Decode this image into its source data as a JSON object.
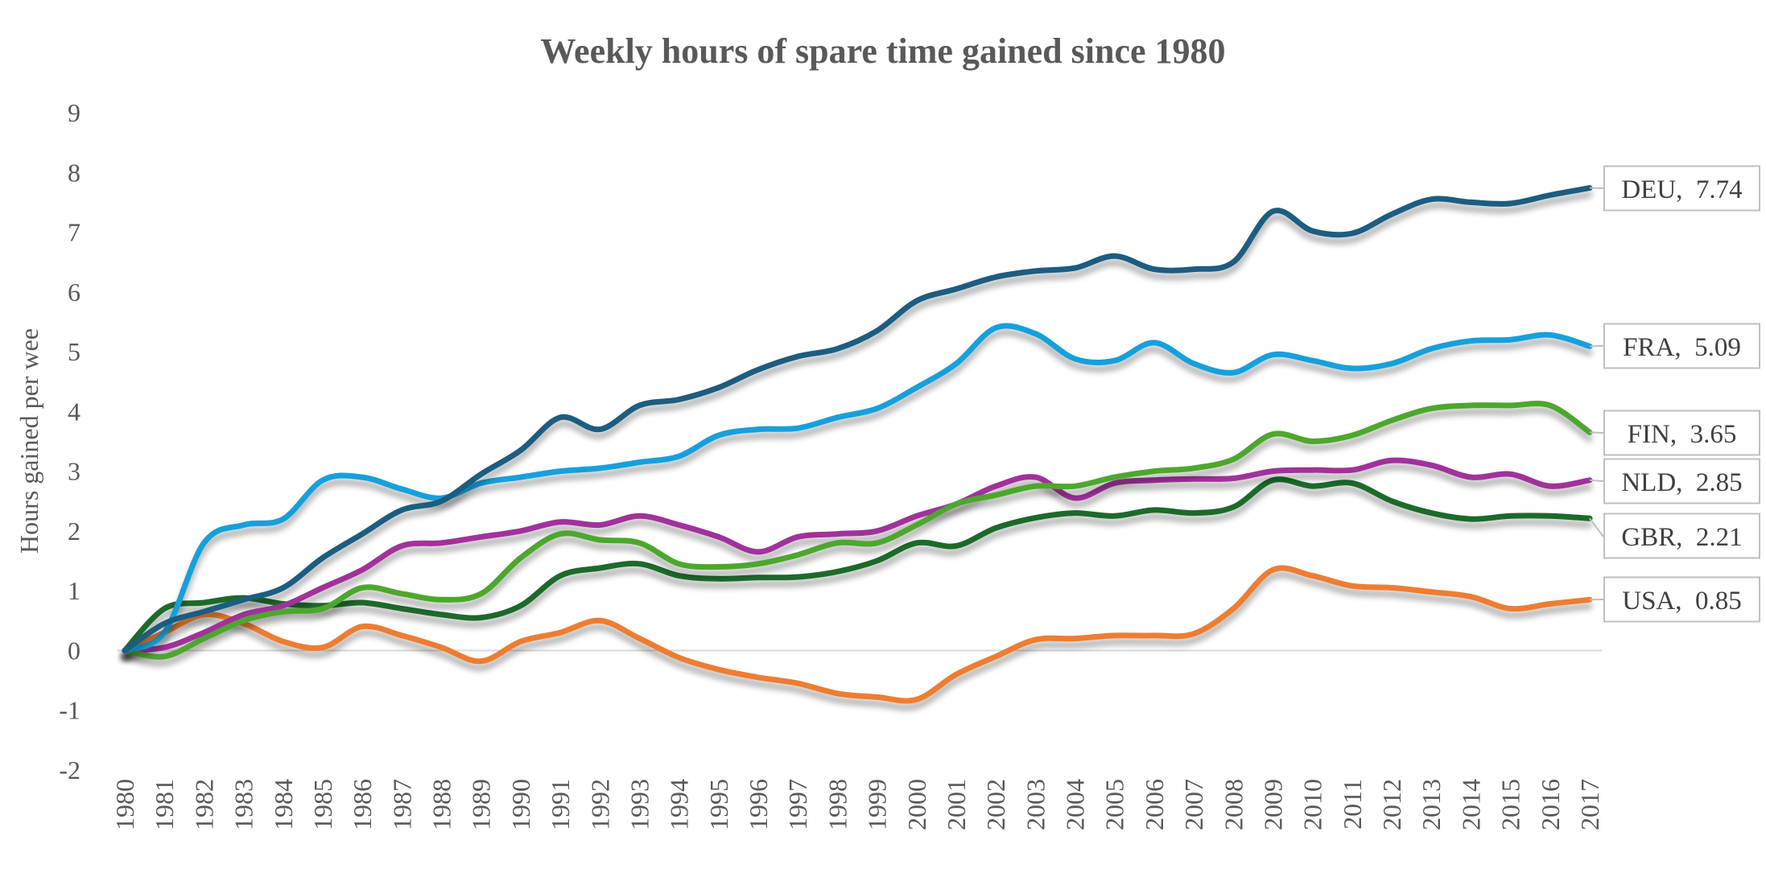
{
  "chart_data": {
    "type": "line",
    "title": "Weekly hours of spare time gained since 1980",
    "xlabel": "",
    "ylabel": "Hours gained per wee",
    "ylim": [
      -2,
      9
    ],
    "y_ticks": [
      "9",
      "8",
      "7",
      "6",
      "5",
      "4",
      "3",
      "2",
      "1",
      "0",
      "-1",
      "-2"
    ],
    "grid": false,
    "x": [
      "1980",
      "1981",
      "1982",
      "1983",
      "1984",
      "1985",
      "1986",
      "1987",
      "1988",
      "1989",
      "1990",
      "1991",
      "1992",
      "1993",
      "1994",
      "1995",
      "1996",
      "1997",
      "1998",
      "1999",
      "2000",
      "2001",
      "2002",
      "2003",
      "2004",
      "2005",
      "2006",
      "2007",
      "2008",
      "2009",
      "2010",
      "2011",
      "2012",
      "2013",
      "2014",
      "2015",
      "2016",
      "2017"
    ],
    "series": [
      {
        "name": "DEU",
        "color": "#1a5d80",
        "callout": "DEU,  7.74",
        "values": [
          0,
          0.45,
          0.65,
          0.85,
          1.05,
          1.55,
          1.95,
          2.35,
          2.5,
          2.95,
          3.35,
          3.9,
          3.7,
          4.1,
          4.2,
          4.4,
          4.7,
          4.92,
          5.05,
          5.35,
          5.85,
          6.05,
          6.25,
          6.35,
          6.4,
          6.6,
          6.38,
          6.38,
          6.5,
          7.35,
          7.02,
          6.98,
          7.3,
          7.55,
          7.5,
          7.48,
          7.62,
          7.74
        ]
      },
      {
        "name": "FRA",
        "color": "#15a0db",
        "callout": "FRA,  5.09",
        "values": [
          0,
          0.3,
          1.8,
          2.1,
          2.2,
          2.85,
          2.9,
          2.7,
          2.55,
          2.8,
          2.9,
          3.0,
          3.05,
          3.15,
          3.25,
          3.6,
          3.7,
          3.72,
          3.9,
          4.05,
          4.4,
          4.8,
          5.4,
          5.3,
          4.88,
          4.85,
          5.15,
          4.8,
          4.65,
          4.95,
          4.85,
          4.72,
          4.8,
          5.05,
          5.18,
          5.2,
          5.28,
          5.09
        ]
      },
      {
        "name": "FIN",
        "color": "#4ea72e",
        "callout": "FIN,  3.65",
        "values": [
          0,
          -0.1,
          0.2,
          0.5,
          0.65,
          0.7,
          1.05,
          0.95,
          0.85,
          0.95,
          1.55,
          1.95,
          1.85,
          1.8,
          1.45,
          1.4,
          1.45,
          1.6,
          1.8,
          1.8,
          2.1,
          2.45,
          2.6,
          2.75,
          2.75,
          2.9,
          3.0,
          3.05,
          3.2,
          3.62,
          3.5,
          3.6,
          3.85,
          4.05,
          4.1,
          4.1,
          4.1,
          3.65
        ]
      },
      {
        "name": "NLD",
        "color": "#a0309b",
        "callout": "NLD,  2.85",
        "values": [
          0,
          0.05,
          0.3,
          0.6,
          0.75,
          1.05,
          1.35,
          1.75,
          1.8,
          1.9,
          2.0,
          2.15,
          2.1,
          2.25,
          2.1,
          1.9,
          1.65,
          1.9,
          1.95,
          2.0,
          2.25,
          2.45,
          2.75,
          2.9,
          2.55,
          2.8,
          2.85,
          2.87,
          2.88,
          3.0,
          3.02,
          3.02,
          3.18,
          3.1,
          2.9,
          2.95,
          2.75,
          2.85
        ]
      },
      {
        "name": "GBR",
        "color": "#1e6b29",
        "callout": "GBR,  2.21",
        "values": [
          0,
          0.7,
          0.8,
          0.88,
          0.78,
          0.75,
          0.8,
          0.7,
          0.6,
          0.55,
          0.75,
          1.25,
          1.38,
          1.45,
          1.25,
          1.2,
          1.22,
          1.23,
          1.32,
          1.5,
          1.8,
          1.75,
          2.05,
          2.22,
          2.3,
          2.25,
          2.35,
          2.3,
          2.4,
          2.85,
          2.75,
          2.8,
          2.5,
          2.3,
          2.2,
          2.25,
          2.25,
          2.21
        ]
      },
      {
        "name": "USA",
        "color": "#ed7d31",
        "callout": "USA,  0.85",
        "values": [
          0,
          0.3,
          0.6,
          0.45,
          0.15,
          0.05,
          0.4,
          0.25,
          0.05,
          -0.18,
          0.15,
          0.3,
          0.5,
          0.2,
          -0.12,
          -0.32,
          -0.45,
          -0.55,
          -0.72,
          -0.78,
          -0.82,
          -0.4,
          -0.1,
          0.18,
          0.2,
          0.25,
          0.25,
          0.28,
          0.7,
          1.35,
          1.25,
          1.08,
          1.05,
          0.98,
          0.9,
          0.7,
          0.78,
          0.85
        ]
      }
    ]
  }
}
